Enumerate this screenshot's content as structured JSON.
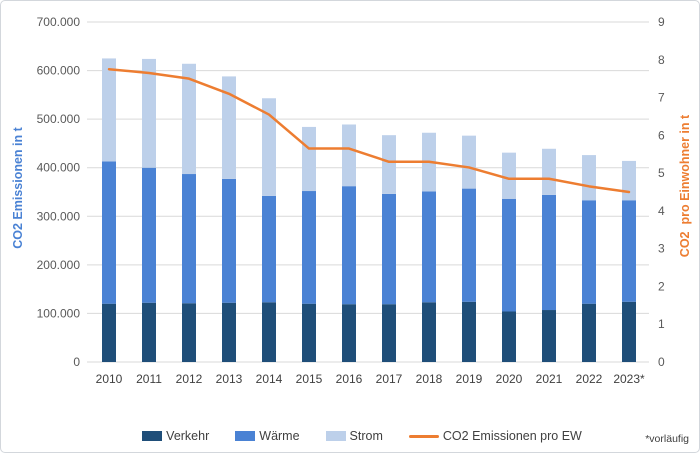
{
  "chart_data": {
    "type": "bar",
    "subtype": "stacked-bars-with-line-overlay",
    "categories": [
      "2010",
      "2011",
      "2012",
      "2013",
      "2014",
      "2015",
      "2016",
      "2017",
      "2018",
      "2019",
      "2020",
      "2021",
      "2022",
      "2023*"
    ],
    "series": [
      {
        "key": "verkehr",
        "name": "Verkehr",
        "type": "bar",
        "axis": "left",
        "color": "#1f4e79",
        "values": [
          120000,
          122000,
          121000,
          122000,
          123000,
          120000,
          119000,
          119000,
          123000,
          124000,
          104000,
          107000,
          120000,
          124000
        ]
      },
      {
        "key": "waerme",
        "name": "Wärme",
        "type": "bar",
        "axis": "left",
        "color": "#4a82d4",
        "values": [
          293000,
          278000,
          266000,
          255000,
          219000,
          232000,
          243000,
          227000,
          228000,
          233000,
          232000,
          237000,
          213000,
          209000
        ]
      },
      {
        "key": "strom",
        "name": "Strom",
        "type": "bar",
        "axis": "left",
        "color": "#bdd0ea",
        "values": [
          212000,
          224000,
          227000,
          211000,
          201000,
          132000,
          127000,
          121000,
          121000,
          109000,
          95000,
          95000,
          93000,
          81000
        ]
      },
      {
        "key": "co2-pro-ew",
        "name": "CO2 Emissionen pro EW",
        "type": "line",
        "axis": "right",
        "color": "#ed7d31",
        "values": [
          7.75,
          7.65,
          7.5,
          7.1,
          6.55,
          5.65,
          5.65,
          5.3,
          5.3,
          5.15,
          4.85,
          4.85,
          4.65,
          4.5
        ]
      }
    ],
    "left_axis": {
      "label": "CO2 Emissionen in t",
      "label_color": "#4a82d4",
      "min": 0,
      "max": 700000,
      "tick_step": 100000,
      "tick_labels": [
        "700.000",
        "600.000",
        "500.000",
        "400.000",
        "300.000",
        "200.000",
        "100.000",
        "0"
      ]
    },
    "right_axis": {
      "label": "CO2  pro Einwohner in t",
      "label_color": "#ed7d31",
      "min": 0,
      "max": 9,
      "tick_step": 1,
      "tick_labels": [
        "9",
        "8",
        "7",
        "6",
        "5",
        "4",
        "3",
        "2",
        "1",
        "0"
      ]
    },
    "grid": true,
    "gridline_color": "#d9d9d9",
    "tick_text_color": "#595959",
    "category_text_color": "#404040",
    "legend_position": "bottom"
  },
  "footnote": "*vorläufig"
}
